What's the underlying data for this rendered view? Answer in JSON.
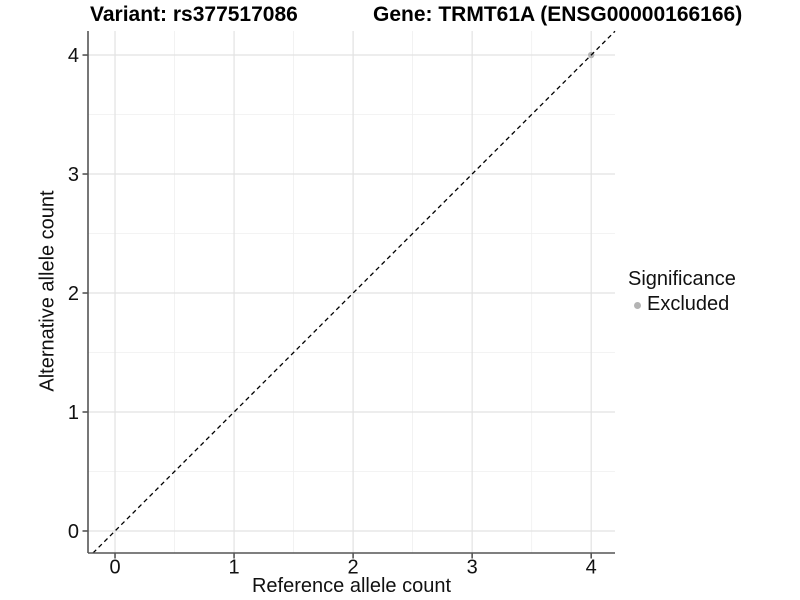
{
  "header": {
    "variant_title": "Variant: rs377517086",
    "gene_title": "Gene: TRMT61A (ENSG00000166166)"
  },
  "chart_data": {
    "type": "scatter",
    "title": "Variant: rs377517086 / Gene: TRMT61A (ENSG00000166166)",
    "xlabel": "Reference allele count",
    "ylabel": "Alternative allele count",
    "xlim": [
      -0.227,
      4.2
    ],
    "ylim": [
      -0.185,
      4.202
    ],
    "x_ticks": [
      0,
      1,
      2,
      3,
      4
    ],
    "y_ticks": [
      0,
      1,
      2,
      3,
      4
    ],
    "x_minor_ticks": [
      0.5,
      1.5,
      2.5,
      3.5
    ],
    "y_minor_ticks": [
      0.5,
      1.5,
      2.5,
      3.5
    ],
    "grid": true,
    "series": [
      {
        "name": "Excluded",
        "points": [
          {
            "x": 4,
            "y": 4
          }
        ]
      }
    ],
    "identity_line": {
      "slope": 1,
      "intercept": 0,
      "style": "dashed",
      "color": "#000000"
    },
    "legend": {
      "title": "Significance",
      "position": "right",
      "items": [
        {
          "label": "Excluded",
          "color": "#b4b4b4"
        }
      ]
    },
    "colors": {
      "grid_major": "#e2e2e2",
      "grid_minor": "#efefef",
      "axis_line": "#555555",
      "tick_mark": "#555555",
      "tick_label": "#111111",
      "point": "#b4b4b4"
    }
  }
}
